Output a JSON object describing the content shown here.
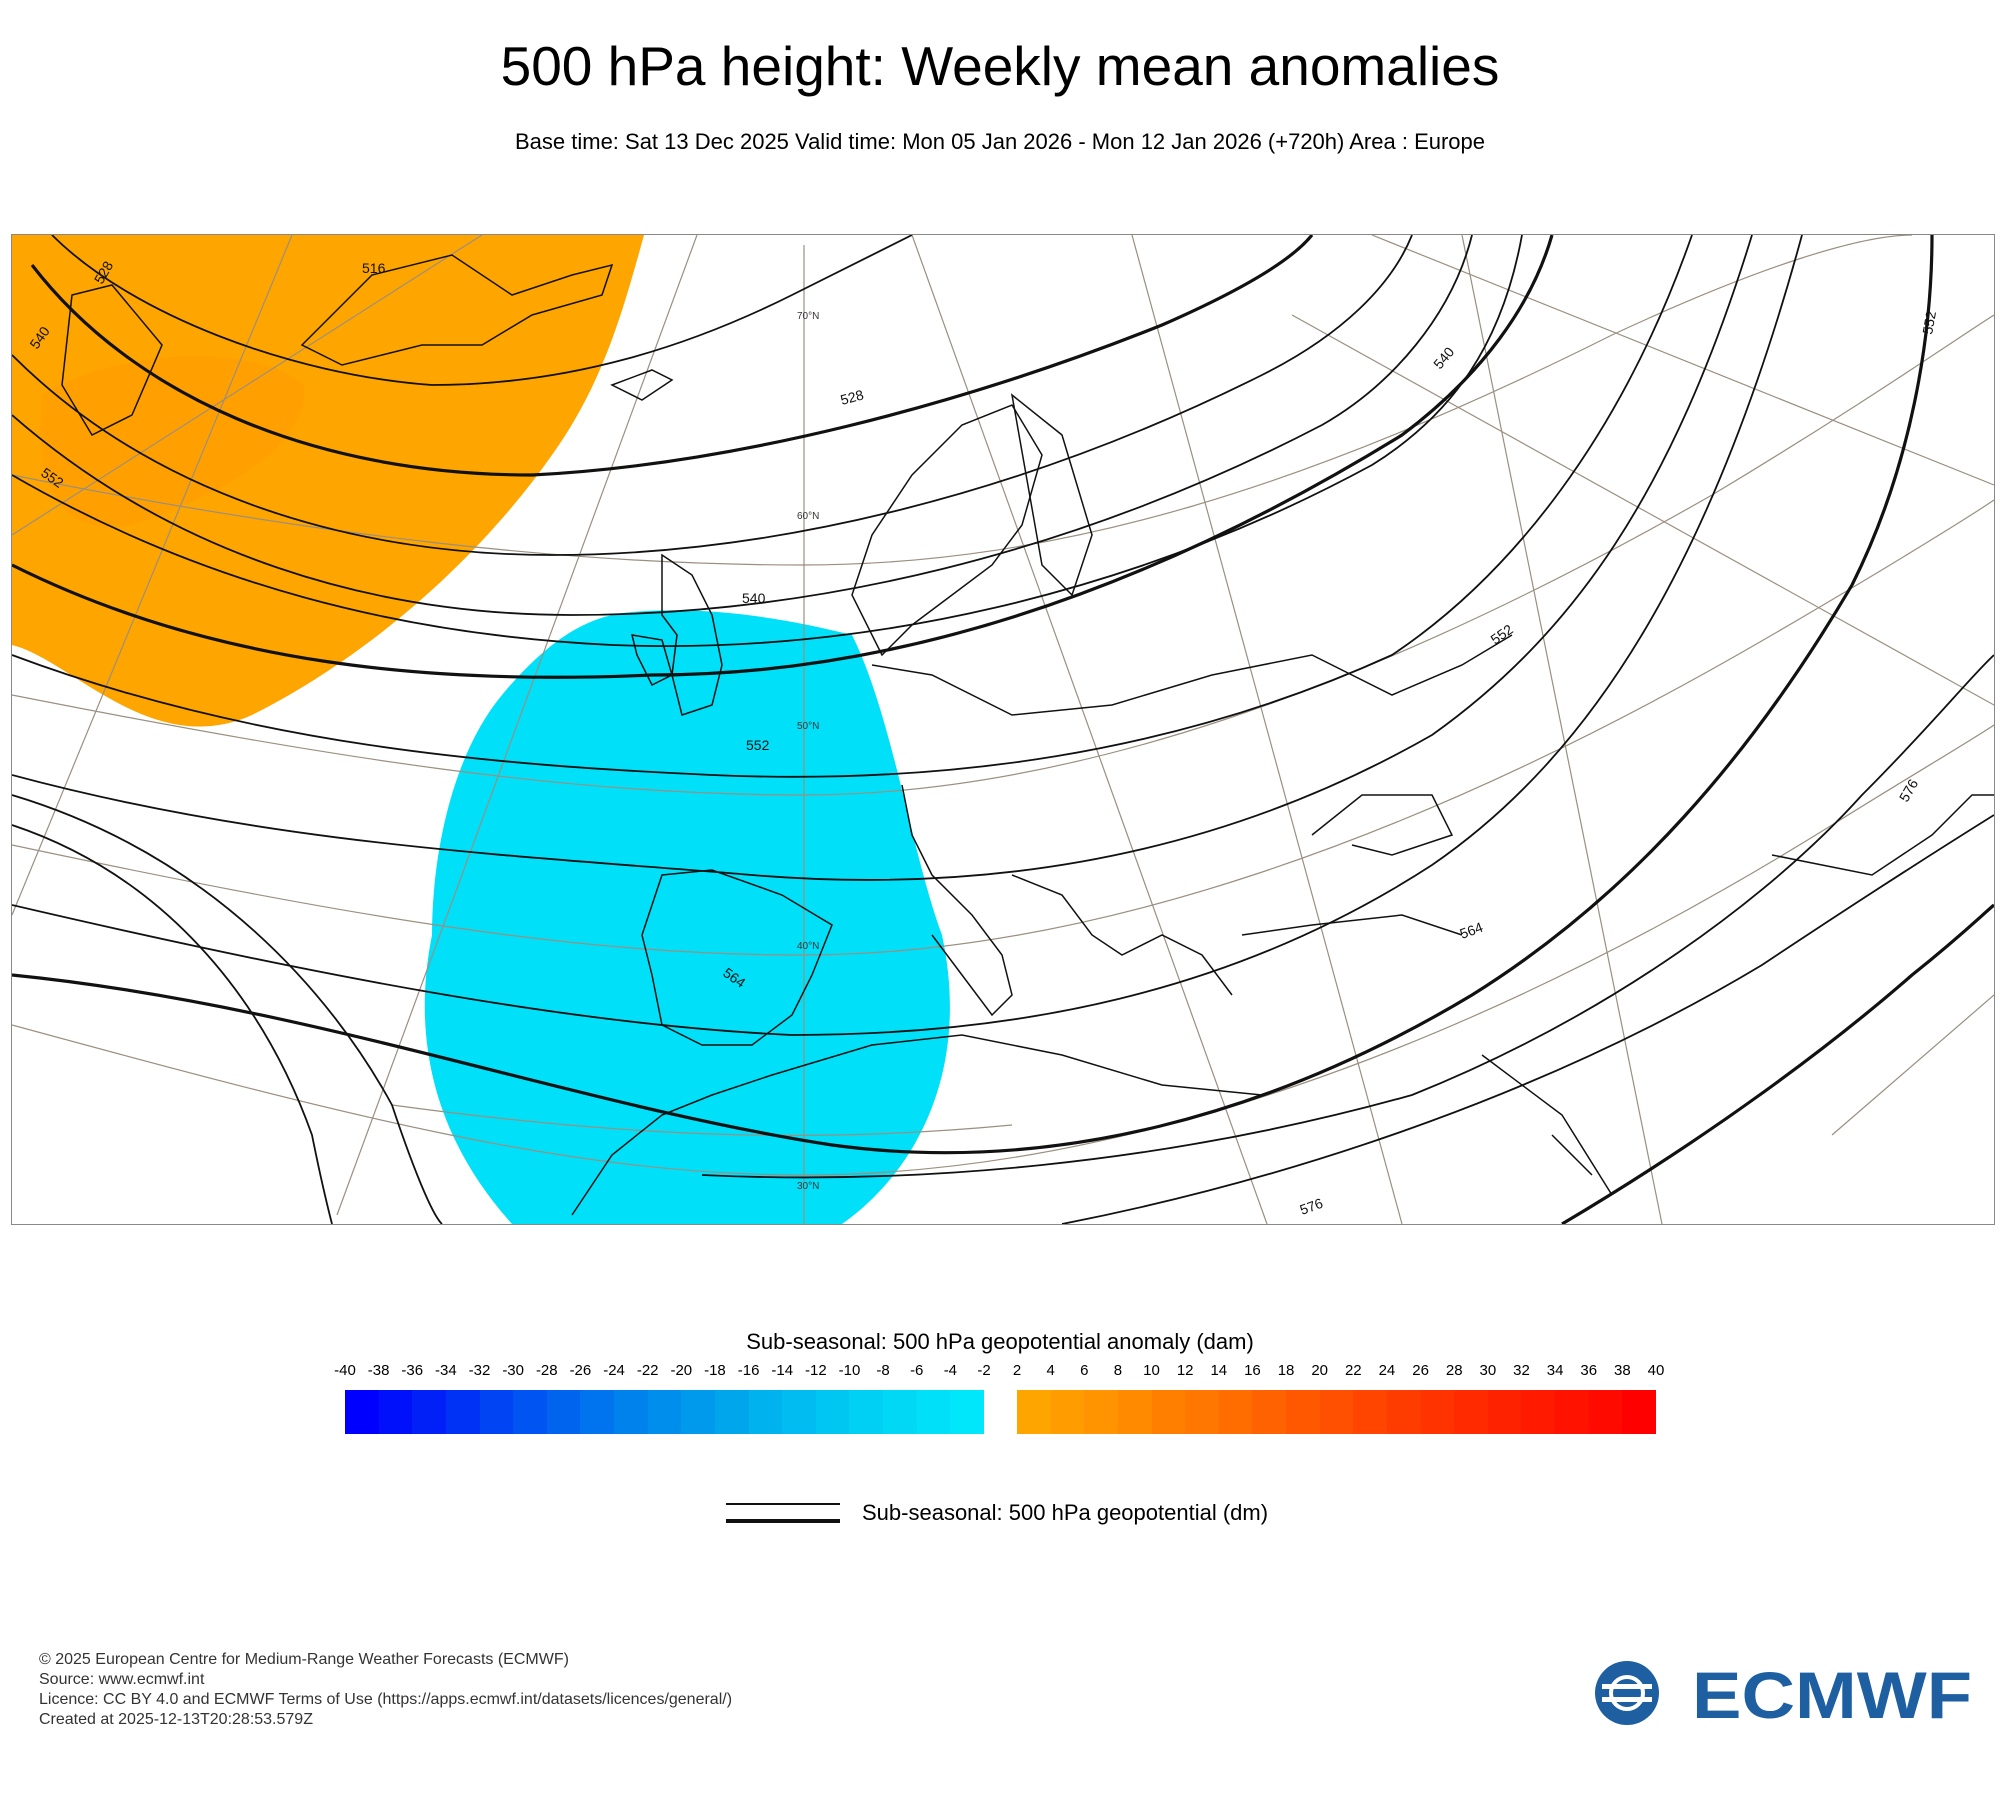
{
  "title": "500 hPa height: Weekly mean anomalies",
  "subtitle": "Base time: Sat 13 Dec 2025 Valid time: Mon 05 Jan 2026 - Mon 12 Jan 2026 (+720h) Area : Europe",
  "map": {
    "contour_labels": [
      "516",
      "528",
      "540",
      "528",
      "552",
      "540",
      "552",
      "564",
      "564",
      "576",
      "576",
      "552",
      "540",
      "552"
    ],
    "latitude_labels": [
      "70°N",
      "60°N",
      "50°N",
      "40°N",
      "30°N"
    ],
    "anomaly_colors": {
      "negative": "#00e0ff",
      "positive": "#ffa500"
    }
  },
  "colorbar": {
    "title": "Sub-seasonal: 500 hPa geopotential anomaly (dam)",
    "negative_ticks": [
      "-40",
      "-38",
      "-36",
      "-34",
      "-32",
      "-30",
      "-28",
      "-26",
      "-24",
      "-22",
      "-20",
      "-18",
      "-16",
      "-14",
      "-12",
      "-10",
      "-8",
      "-6",
      "-4",
      "-2"
    ],
    "positive_ticks": [
      "2",
      "4",
      "6",
      "8",
      "10",
      "12",
      "14",
      "16",
      "18",
      "20",
      "22",
      "24",
      "26",
      "28",
      "30",
      "32",
      "34",
      "36",
      "38",
      "40"
    ],
    "negative_colors": [
      "#0000ff",
      "#0010fb",
      "#0020f7",
      "#0032f5",
      "#0044f3",
      "#0054f1",
      "#0064ef",
      "#0074ee",
      "#0082ed",
      "#008eec",
      "#009aec",
      "#00a6ec",
      "#00b2ee",
      "#00bcf0",
      "#00c6f2",
      "#00d0f4",
      "#00d8f6",
      "#00e0f8",
      "#00e6fa"
    ],
    "positive_colors": [
      "#ffa500",
      "#ff9d00",
      "#ff9400",
      "#ff8a00",
      "#ff8000",
      "#ff7600",
      "#ff6c00",
      "#ff6200",
      "#ff5800",
      "#ff4f00",
      "#ff4500",
      "#ff3c00",
      "#ff3300",
      "#ff2a00",
      "#ff2200",
      "#ff1a00",
      "#ff1200",
      "#ff0a00",
      "#ff0000"
    ]
  },
  "line_legend": {
    "label": "Sub-seasonal: 500 hPa geopotential (dm)"
  },
  "footer": {
    "line1": "© 2025 European Centre for Medium-Range Weather Forecasts (ECMWF)",
    "line2": "Source: www.ecmwf.int",
    "line3": "Licence: CC BY 4.0 and ECMWF Terms of Use (https://apps.ecmwf.int/datasets/licences/general/)",
    "line4": "Created at 2025-12-13T20:28:53.579Z"
  },
  "logo": {
    "text": "ECMWF",
    "color": "#1d5fa0"
  }
}
